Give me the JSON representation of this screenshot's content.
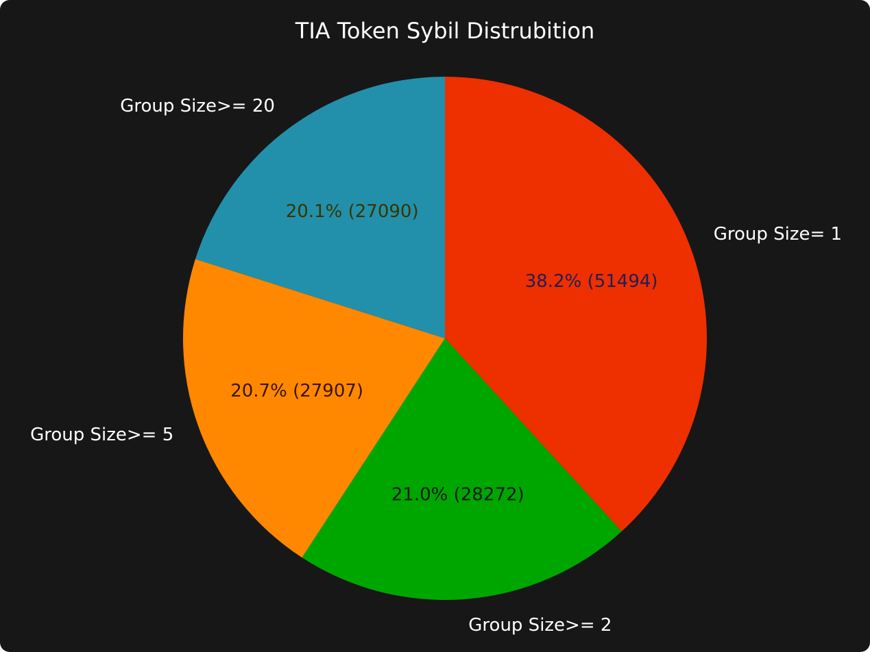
{
  "chart_data": {
    "type": "pie",
    "title": "TIA Token Sybil Distrubition",
    "start_angle_deg": 90,
    "direction": "clockwise",
    "slices": [
      {
        "label": "Group Size= 1",
        "value": 51494,
        "percent_label": "38.2% (51494)",
        "color": "#ee2f00",
        "text_color": "#1f1f55"
      },
      {
        "label": "Group Size>= 2",
        "value": 28272,
        "percent_label": "21.0% (28272)",
        "color": "#00a600",
        "text_color": "#0e1a0e"
      },
      {
        "label": "Group Size>= 5",
        "value": 27907,
        "percent_label": "20.7% (27907)",
        "color": "#ff8800",
        "text_color": "#3a1400"
      },
      {
        "label": "Group Size>= 20",
        "value": 27090,
        "percent_label": "20.1% (27090)",
        "color": "#2290aa",
        "text_color": "#3a3400"
      }
    ],
    "background": "#171717"
  }
}
